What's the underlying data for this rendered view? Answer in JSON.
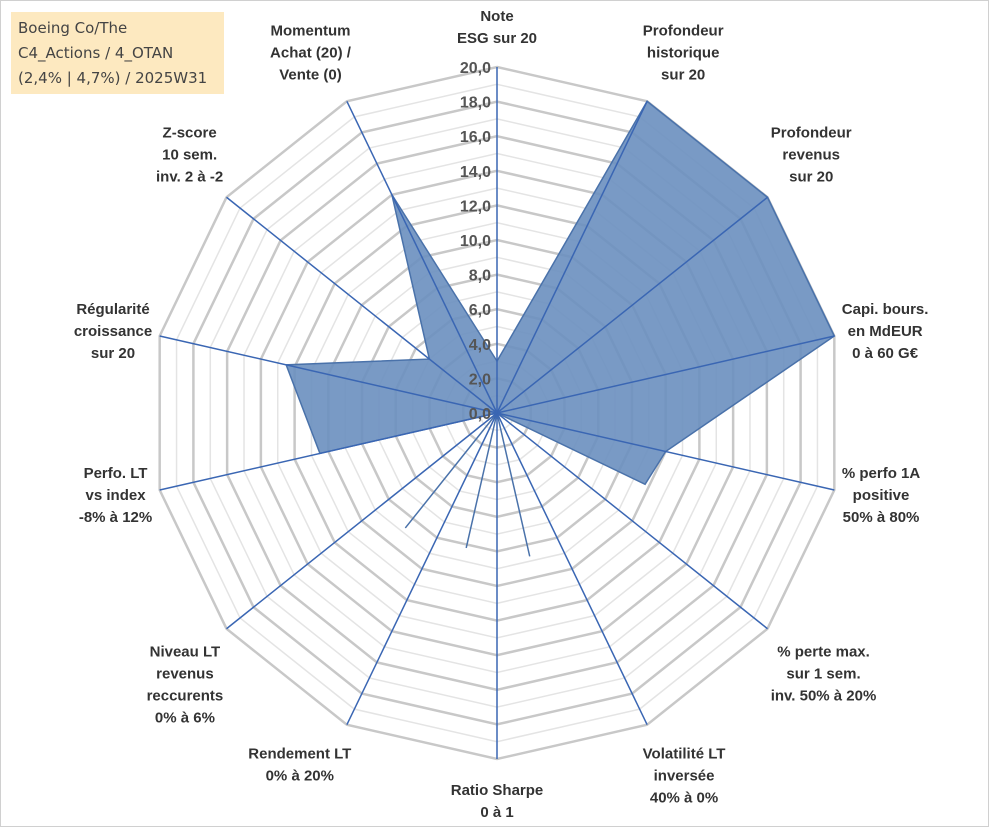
{
  "title_box": {
    "line1": "Boeing Co/The",
    "line2": "C4_Actions / 4_OTAN",
    "line3": "(2,4% | 4,7%) / 2025W31"
  },
  "chart_data": {
    "type": "radar",
    "title": "Boeing Co/The C4_Actions / 4_OTAN (2,4% | 4,7%) / 2025W31",
    "rlim": [
      0,
      20
    ],
    "ticks": [
      "0,0",
      "2,0",
      "4,0",
      "6,0",
      "8,0",
      "10,0",
      "12,0",
      "14,0",
      "16,0",
      "18,0",
      "20,0"
    ],
    "grid": true,
    "series_color": "#6a8fbf",
    "axes": [
      {
        "label": [
          "Note",
          "ESG sur 20"
        ],
        "value": 3.0
      },
      {
        "label": [
          "Profondeur",
          "historique",
          "sur 20"
        ],
        "value": 20.0
      },
      {
        "label": [
          "Profondeur",
          "revenus",
          "sur 20"
        ],
        "value": 20.0
      },
      {
        "label": [
          "Capi. bours.",
          "en MdEUR",
          "0 à 60 G€"
        ],
        "value": 20.0
      },
      {
        "label": [
          "% perfo 1A",
          "positive",
          "50% à 80%"
        ],
        "value": 10.0
      },
      {
        "label": [
          "% perte max.",
          "sur 1 sem.",
          "inv. 50% à 20%"
        ],
        "value": 0.0
      },
      {
        "label": [
          "Volatilité LT",
          "inversée",
          "40% à 0%"
        ],
        "value": 0.0
      },
      {
        "label": [
          "Ratio Sharpe",
          "0 à 1"
        ],
        "value": 0.0
      },
      {
        "label": [
          "Rendement LT",
          "0% à 20%"
        ],
        "value": 0.0
      },
      {
        "label": [
          "Niveau LT",
          "revenus",
          "reccurents",
          "0% à 6%"
        ],
        "value": 0.0
      },
      {
        "label": [
          "Perfo. LT",
          "vs index",
          "-8% à 12%"
        ],
        "value": 10.5
      },
      {
        "label": [
          "Régularité",
          "croissance",
          "sur 20"
        ],
        "value": 12.5
      },
      {
        "label": [
          "Z-score",
          "10 sem.",
          "inv. 2 à -2"
        ],
        "value": 5.0
      },
      {
        "label": [
          "Momentum",
          "Achat (20) /",
          "Vente (0)"
        ],
        "value": 14.0
      }
    ],
    "extra_points": [
      {
        "between": 4,
        "value": 9.5
      },
      {
        "between": 5,
        "value": 0.0
      },
      {
        "between": 6,
        "value": 8.5
      },
      {
        "between": 7,
        "value": 8.0
      },
      {
        "between": 8,
        "value": 8.5
      }
    ]
  }
}
